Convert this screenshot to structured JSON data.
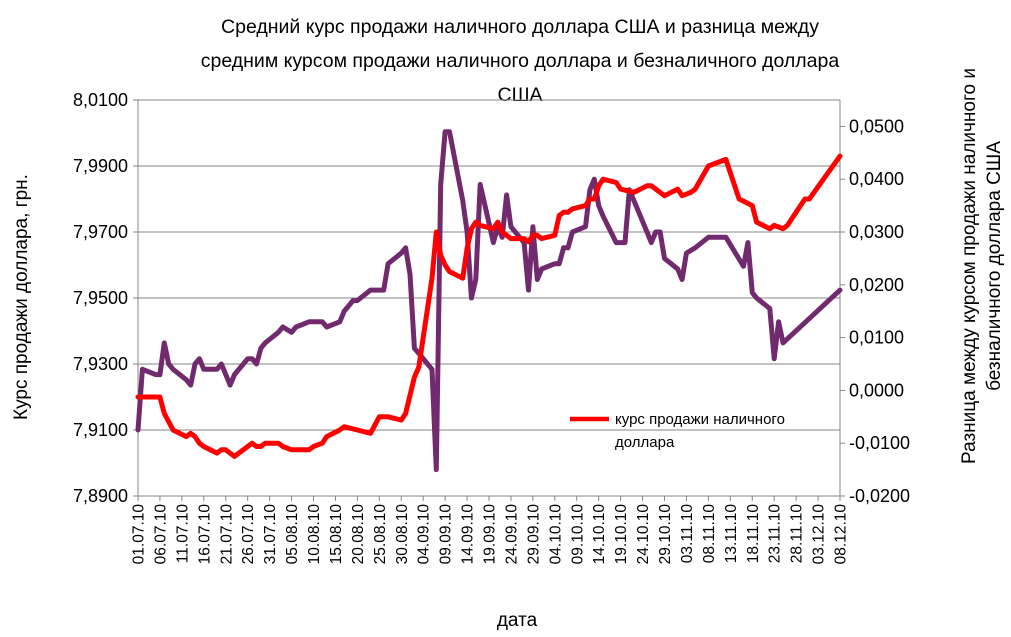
{
  "chart_data": {
    "type": "line",
    "title_lines": [
      "Средний курс продажи  наличного доллара США и разница между",
      "средним курсом продажи наличного доллара и безналичного доллара",
      "США"
    ],
    "xlabel": "дата",
    "ylabel_left": "Курс продажи доллара, грн.",
    "ylabel_right_lines": [
      "Разница между курсом продажи наличного и",
      "безналичного доллара США"
    ],
    "y_left": {
      "min": 7.89,
      "max": 8.01,
      "ticks": [
        7.89,
        7.91,
        7.93,
        7.95,
        7.97,
        7.99,
        8.01
      ],
      "tick_labels": [
        "7,8900",
        "7,9100",
        "7,9300",
        "7,9500",
        "7,9700",
        "7,9900",
        "8,0100"
      ]
    },
    "y_right": {
      "min": -0.02,
      "max": 0.055,
      "ticks": [
        -0.02,
        -0.01,
        0,
        0.01,
        0.02,
        0.03,
        0.04,
        0.05
      ],
      "tick_labels": [
        "-0,0200",
        "-0,0100",
        "0,0000",
        "0,0100",
        "0,0200",
        "0,0300",
        "0,0400",
        "0,0500"
      ]
    },
    "x_dates": [
      "01.07.10",
      "06.07.10",
      "11.07.10",
      "16.07.10",
      "21.07.10",
      "26.07.10",
      "31.07.10",
      "05.08.10",
      "10.08.10",
      "15.08.10",
      "20.08.10",
      "25.08.10",
      "30.08.10",
      "04.09.10",
      "09.09.10",
      "14.09.10",
      "19.09.10",
      "24.09.10",
      "29.09.10",
      "04.10.10",
      "09.10.10",
      "14.10.10",
      "19.10.10",
      "24.10.10",
      "29.10.10",
      "03.11.10",
      "08.11.10",
      "13.11.10",
      "18.11.10",
      "23.11.10",
      "28.11.10",
      "03.12.10",
      "08.12.10"
    ],
    "grid": "horizontal lines at left-axis ticks",
    "legend_position": "inside, lower-right of the plot",
    "series": [
      {
        "name": "курс продажи наличного доллара",
        "legend_label_lines": [
          "курс продажи наличного",
          "доллара"
        ],
        "axis": "left",
        "color": "#ff0000",
        "points": [
          [
            "01.07.10",
            7.92
          ],
          [
            "02.07.10",
            7.92
          ],
          [
            "05.07.10",
            7.92
          ],
          [
            "06.07.10",
            7.92
          ],
          [
            "07.07.10",
            7.915
          ],
          [
            "09.07.10",
            7.91
          ],
          [
            "12.07.10",
            7.908
          ],
          [
            "13.07.10",
            7.909
          ],
          [
            "14.07.10",
            7.908
          ],
          [
            "15.07.10",
            7.906
          ],
          [
            "16.07.10",
            7.905
          ],
          [
            "19.07.10",
            7.903
          ],
          [
            "20.07.10",
            7.904
          ],
          [
            "21.07.10",
            7.904
          ],
          [
            "22.07.10",
            7.903
          ],
          [
            "23.07.10",
            7.902
          ],
          [
            "26.07.10",
            7.905
          ],
          [
            "27.07.10",
            7.906
          ],
          [
            "28.07.10",
            7.905
          ],
          [
            "29.07.10",
            7.905
          ],
          [
            "30.07.10",
            7.906
          ],
          [
            "02.08.10",
            7.906
          ],
          [
            "03.08.10",
            7.905
          ],
          [
            "05.08.10",
            7.904
          ],
          [
            "09.08.10",
            7.904
          ],
          [
            "10.08.10",
            7.905
          ],
          [
            "12.08.10",
            7.906
          ],
          [
            "13.08.10",
            7.908
          ],
          [
            "16.08.10",
            7.91
          ],
          [
            "17.08.10",
            7.911
          ],
          [
            "20.08.10",
            7.91
          ],
          [
            "23.08.10",
            7.909
          ],
          [
            "25.08.10",
            7.914
          ],
          [
            "27.08.10",
            7.914
          ],
          [
            "30.08.10",
            7.913
          ],
          [
            "31.08.10",
            7.915
          ],
          [
            "02.09.10",
            7.926
          ],
          [
            "03.09.10",
            7.929
          ],
          [
            "06.09.10",
            7.956
          ],
          [
            "07.09.10",
            7.97
          ],
          [
            "08.09.10",
            7.963
          ],
          [
            "09.09.10",
            7.96
          ],
          [
            "10.09.10",
            7.958
          ],
          [
            "13.09.10",
            7.956
          ],
          [
            "14.09.10",
            7.965
          ],
          [
            "15.09.10",
            7.971
          ],
          [
            "16.09.10",
            7.973
          ],
          [
            "17.09.10",
            7.972
          ],
          [
            "20.09.10",
            7.971
          ],
          [
            "21.09.10",
            7.973
          ],
          [
            "22.09.10",
            7.97
          ],
          [
            "24.09.10",
            7.968
          ],
          [
            "27.09.10",
            7.968
          ],
          [
            "28.09.10",
            7.967
          ],
          [
            "29.09.10",
            7.969
          ],
          [
            "30.09.10",
            7.969
          ],
          [
            "01.10.10",
            7.968
          ],
          [
            "04.10.10",
            7.969
          ],
          [
            "05.10.10",
            7.975
          ],
          [
            "06.10.10",
            7.976
          ],
          [
            "07.10.10",
            7.976
          ],
          [
            "08.10.10",
            7.977
          ],
          [
            "11.10.10",
            7.978
          ],
          [
            "12.10.10",
            7.98
          ],
          [
            "13.10.10",
            7.98
          ],
          [
            "14.10.10",
            7.984
          ],
          [
            "15.10.10",
            7.986
          ],
          [
            "18.10.10",
            7.985
          ],
          [
            "19.10.10",
            7.983
          ],
          [
            "22.10.10",
            7.982
          ],
          [
            "25.10.10",
            7.984
          ],
          [
            "26.10.10",
            7.984
          ],
          [
            "28.10.10",
            7.982
          ],
          [
            "29.10.10",
            7.981
          ],
          [
            "01.11.10",
            7.983
          ],
          [
            "02.11.10",
            7.981
          ],
          [
            "04.11.10",
            7.982
          ],
          [
            "05.11.10",
            7.983
          ],
          [
            "08.11.10",
            7.99
          ],
          [
            "12.11.10",
            7.992
          ],
          [
            "15.11.10",
            7.98
          ],
          [
            "18.11.10",
            7.978
          ],
          [
            "19.11.10",
            7.973
          ],
          [
            "22.11.10",
            7.971
          ],
          [
            "23.11.10",
            7.972
          ],
          [
            "25.11.10",
            7.971
          ],
          [
            "26.11.10",
            7.972
          ],
          [
            "29.11.10",
            7.978
          ],
          [
            "30.11.10",
            7.98
          ],
          [
            "01.12.10",
            7.98
          ],
          [
            "08.12.10",
            7.993
          ]
        ]
      },
      {
        "name": "разница между курсом продажи наличного и безналичного доллара",
        "axis": "right",
        "color": "#722a6e",
        "points": [
          [
            "01.07.10",
            -0.0075
          ],
          [
            "02.07.10",
            0.004
          ],
          [
            "05.07.10",
            0.003
          ],
          [
            "06.07.10",
            0.003
          ],
          [
            "07.07.10",
            0.009
          ],
          [
            "08.07.10",
            0.005
          ],
          [
            "09.07.10",
            0.004
          ],
          [
            "12.07.10",
            0.002
          ],
          [
            "13.07.10",
            0.001
          ],
          [
            "14.07.10",
            0.005
          ],
          [
            "15.07.10",
            0.006
          ],
          [
            "16.07.10",
            0.004
          ],
          [
            "19.07.10",
            0.004
          ],
          [
            "20.07.10",
            0.005
          ],
          [
            "21.07.10",
            0.003
          ],
          [
            "22.07.10",
            0.001
          ],
          [
            "23.07.10",
            0.003
          ],
          [
            "26.07.10",
            0.006
          ],
          [
            "27.07.10",
            0.006
          ],
          [
            "28.07.10",
            0.005
          ],
          [
            "29.07.10",
            0.008
          ],
          [
            "30.07.10",
            0.009
          ],
          [
            "02.08.10",
            0.011
          ],
          [
            "03.08.10",
            0.012
          ],
          [
            "05.08.10",
            0.011
          ],
          [
            "06.08.10",
            0.012
          ],
          [
            "09.08.10",
            0.013
          ],
          [
            "10.08.10",
            0.013
          ],
          [
            "12.08.10",
            0.013
          ],
          [
            "13.08.10",
            0.012
          ],
          [
            "16.08.10",
            0.013
          ],
          [
            "17.08.10",
            0.015
          ],
          [
            "19.08.10",
            0.017
          ],
          [
            "20.08.10",
            0.017
          ],
          [
            "23.08.10",
            0.019
          ],
          [
            "26.08.10",
            0.019
          ],
          [
            "27.08.10",
            0.024
          ],
          [
            "30.08.10",
            0.026
          ],
          [
            "31.08.10",
            0.027
          ],
          [
            "01.09.10",
            0.022
          ],
          [
            "02.09.10",
            0.008
          ],
          [
            "03.09.10",
            0.007
          ],
          [
            "06.09.10",
            0.004
          ],
          [
            "07.09.10",
            -0.015
          ],
          [
            "08.09.10",
            0.039
          ],
          [
            "09.09.10",
            0.049
          ],
          [
            "10.09.10",
            0.049
          ],
          [
            "13.09.10",
            0.036
          ],
          [
            "14.09.10",
            0.03
          ],
          [
            "15.09.10",
            0.0175
          ],
          [
            "16.09.10",
            0.021
          ],
          [
            "17.09.10",
            0.039
          ],
          [
            "20.09.10",
            0.028
          ],
          [
            "21.09.10",
            0.031
          ],
          [
            "22.09.10",
            0.029
          ],
          [
            "23.09.10",
            0.037
          ],
          [
            "24.09.10",
            0.031
          ],
          [
            "27.09.10",
            0.028
          ],
          [
            "28.09.10",
            0.019
          ],
          [
            "29.09.10",
            0.031
          ],
          [
            "30.09.10",
            0.021
          ],
          [
            "01.10.10",
            0.023
          ],
          [
            "04.10.10",
            0.024
          ],
          [
            "05.10.10",
            0.024
          ],
          [
            "06.10.10",
            0.027
          ],
          [
            "07.10.10",
            0.027
          ],
          [
            "08.10.10",
            0.03
          ],
          [
            "11.10.10",
            0.031
          ],
          [
            "12.10.10",
            0.038
          ],
          [
            "13.10.10",
            0.04
          ],
          [
            "14.10.10",
            0.035
          ],
          [
            "15.10.10",
            0.033
          ],
          [
            "18.10.10",
            0.028
          ],
          [
            "19.10.10",
            0.028
          ],
          [
            "20.10.10",
            0.028
          ],
          [
            "21.10.10",
            0.038
          ],
          [
            "22.10.10",
            0.036
          ],
          [
            "25.10.10",
            0.03
          ],
          [
            "26.10.10",
            0.028
          ],
          [
            "27.10.10",
            0.03
          ],
          [
            "28.10.10",
            0.03
          ],
          [
            "29.10.10",
            0.025
          ],
          [
            "01.11.10",
            0.023
          ],
          [
            "02.11.10",
            0.021
          ],
          [
            "03.11.10",
            0.026
          ],
          [
            "05.11.10",
            0.027
          ],
          [
            "08.11.10",
            0.029
          ],
          [
            "12.11.10",
            0.029
          ],
          [
            "16.11.10",
            0.0235
          ],
          [
            "17.11.10",
            0.028
          ],
          [
            "18.11.10",
            0.0185
          ],
          [
            "19.11.10",
            0.0175
          ],
          [
            "22.11.10",
            0.0155
          ],
          [
            "23.11.10",
            0.006
          ],
          [
            "24.11.10",
            0.013
          ],
          [
            "25.11.10",
            0.009
          ],
          [
            "08.12.10",
            0.019
          ]
        ]
      }
    ]
  }
}
